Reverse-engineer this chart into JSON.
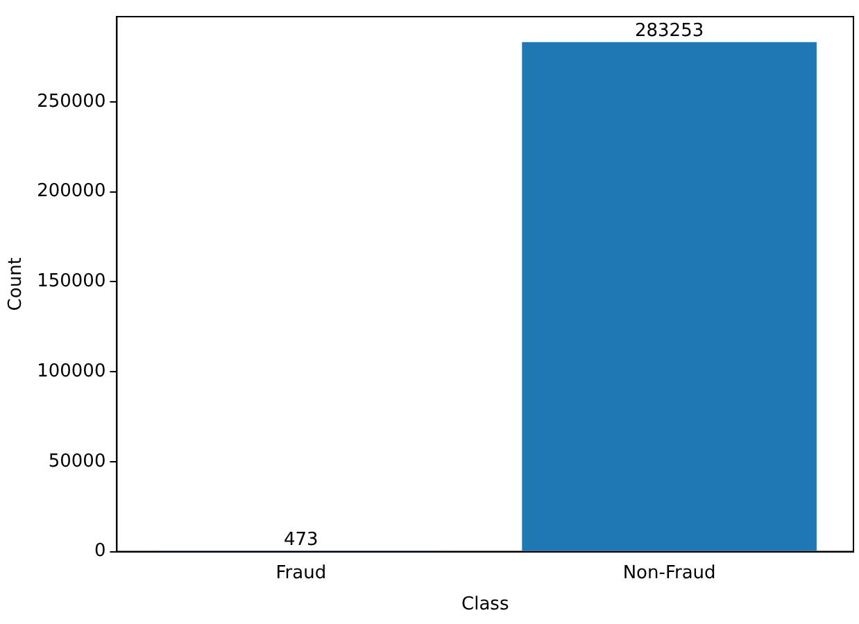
{
  "chart_data": {
    "type": "bar",
    "xlabel": "Class",
    "ylabel": "Count",
    "categories": [
      "Fraud",
      "Non-Fraud"
    ],
    "values": [
      473,
      283253
    ],
    "color": "#1f77b4",
    "ylim": [
      0,
      297400
    ],
    "yticks": [
      0,
      50000,
      100000,
      150000,
      200000,
      250000
    ],
    "data_labels": true,
    "grid": false,
    "legend": false
  }
}
